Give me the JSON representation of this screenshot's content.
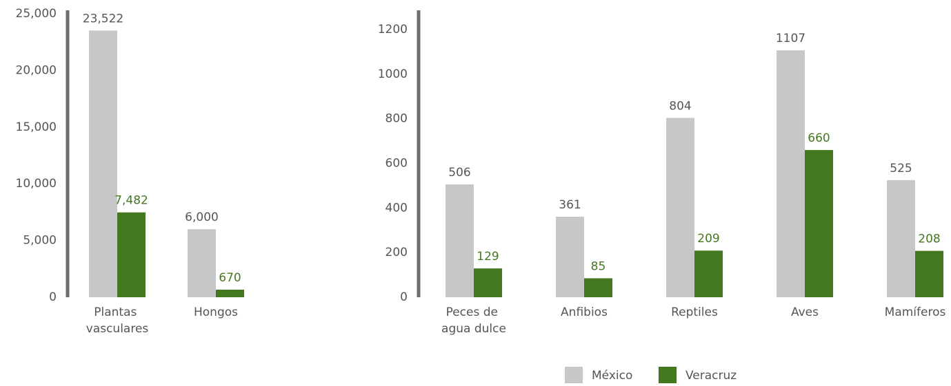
{
  "chart_data": [
    {
      "type": "bar",
      "categories": [
        "Plantas vasculares",
        "Hongos"
      ],
      "series": [
        {
          "name": "México",
          "color": "#c6c7c8",
          "values": [
            23522,
            6000
          ],
          "value_labels": [
            "23,522",
            "6,000"
          ]
        },
        {
          "name": "Veracruz",
          "color": "#44781e",
          "values": [
            7482,
            670
          ],
          "value_labels": [
            "7,482",
            "670"
          ]
        }
      ],
      "ylim": [
        0,
        25000
      ],
      "yticks": [
        0,
        {
          "value": 5000,
          "label": "5,000"
        },
        {
          "value": 10000,
          "label": "10,000"
        },
        {
          "value": 15000,
          "label": "15,000"
        },
        {
          "value": 20000,
          "label": "20,000"
        },
        {
          "value": 25000,
          "label": "25,000"
        }
      ]
    },
    {
      "type": "bar",
      "categories": [
        "Peces de agua dulce",
        "Anfibios",
        "Reptiles",
        "Aves",
        "Mamíferos"
      ],
      "series": [
        {
          "name": "México",
          "color": "#c6c7c8",
          "values": [
            506,
            361,
            804,
            1107,
            525
          ]
        },
        {
          "name": "Veracruz",
          "color": "#44781e",
          "values": [
            129,
            85,
            209,
            660,
            208
          ]
        }
      ],
      "ylim": [
        0,
        1200
      ],
      "yticks": [
        0,
        200,
        400,
        600,
        800,
        1000,
        1200
      ],
      "legend": "bottom"
    }
  ]
}
